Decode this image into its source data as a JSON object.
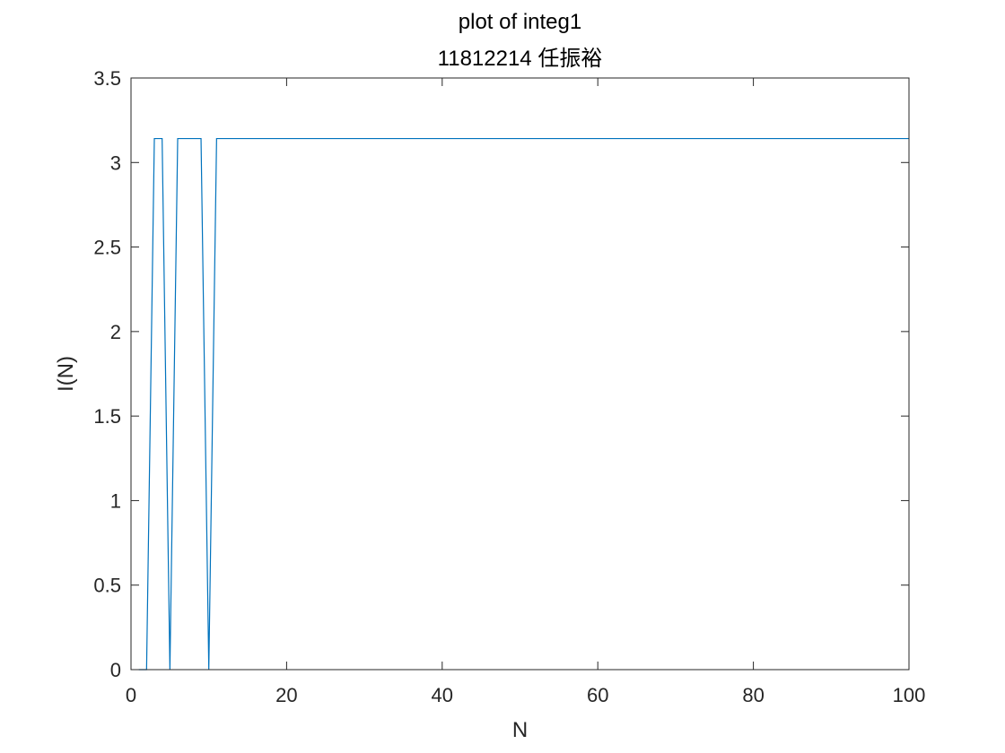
{
  "chart_data": {
    "type": "line",
    "title": "plot of integ1",
    "subtitle": "11812214 任振裕",
    "xlabel": "N",
    "ylabel": "I(N)",
    "xlim": [
      0,
      100
    ],
    "ylim": [
      0,
      3.5
    ],
    "xticks": [
      0,
      20,
      40,
      60,
      80,
      100
    ],
    "yticks": [
      0,
      0.5,
      1,
      1.5,
      2,
      2.5,
      3,
      3.5
    ],
    "xtick_labels": [
      "0",
      "20",
      "40",
      "60",
      "80",
      "100"
    ],
    "ytick_labels": [
      "0",
      "0.5",
      "1",
      "1.5",
      "2",
      "2.5",
      "3",
      "3.5"
    ],
    "grid": false,
    "box": true,
    "series": [
      {
        "color": "#0072BD",
        "x": [
          1,
          2,
          3,
          4,
          5,
          6,
          7,
          8,
          9,
          10,
          11,
          12,
          100
        ],
        "y": [
          0,
          0,
          3.1416,
          3.1416,
          0,
          3.1416,
          3.1416,
          3.1416,
          3.1416,
          0,
          3.1416,
          3.1416,
          3.1416
        ]
      }
    ]
  }
}
